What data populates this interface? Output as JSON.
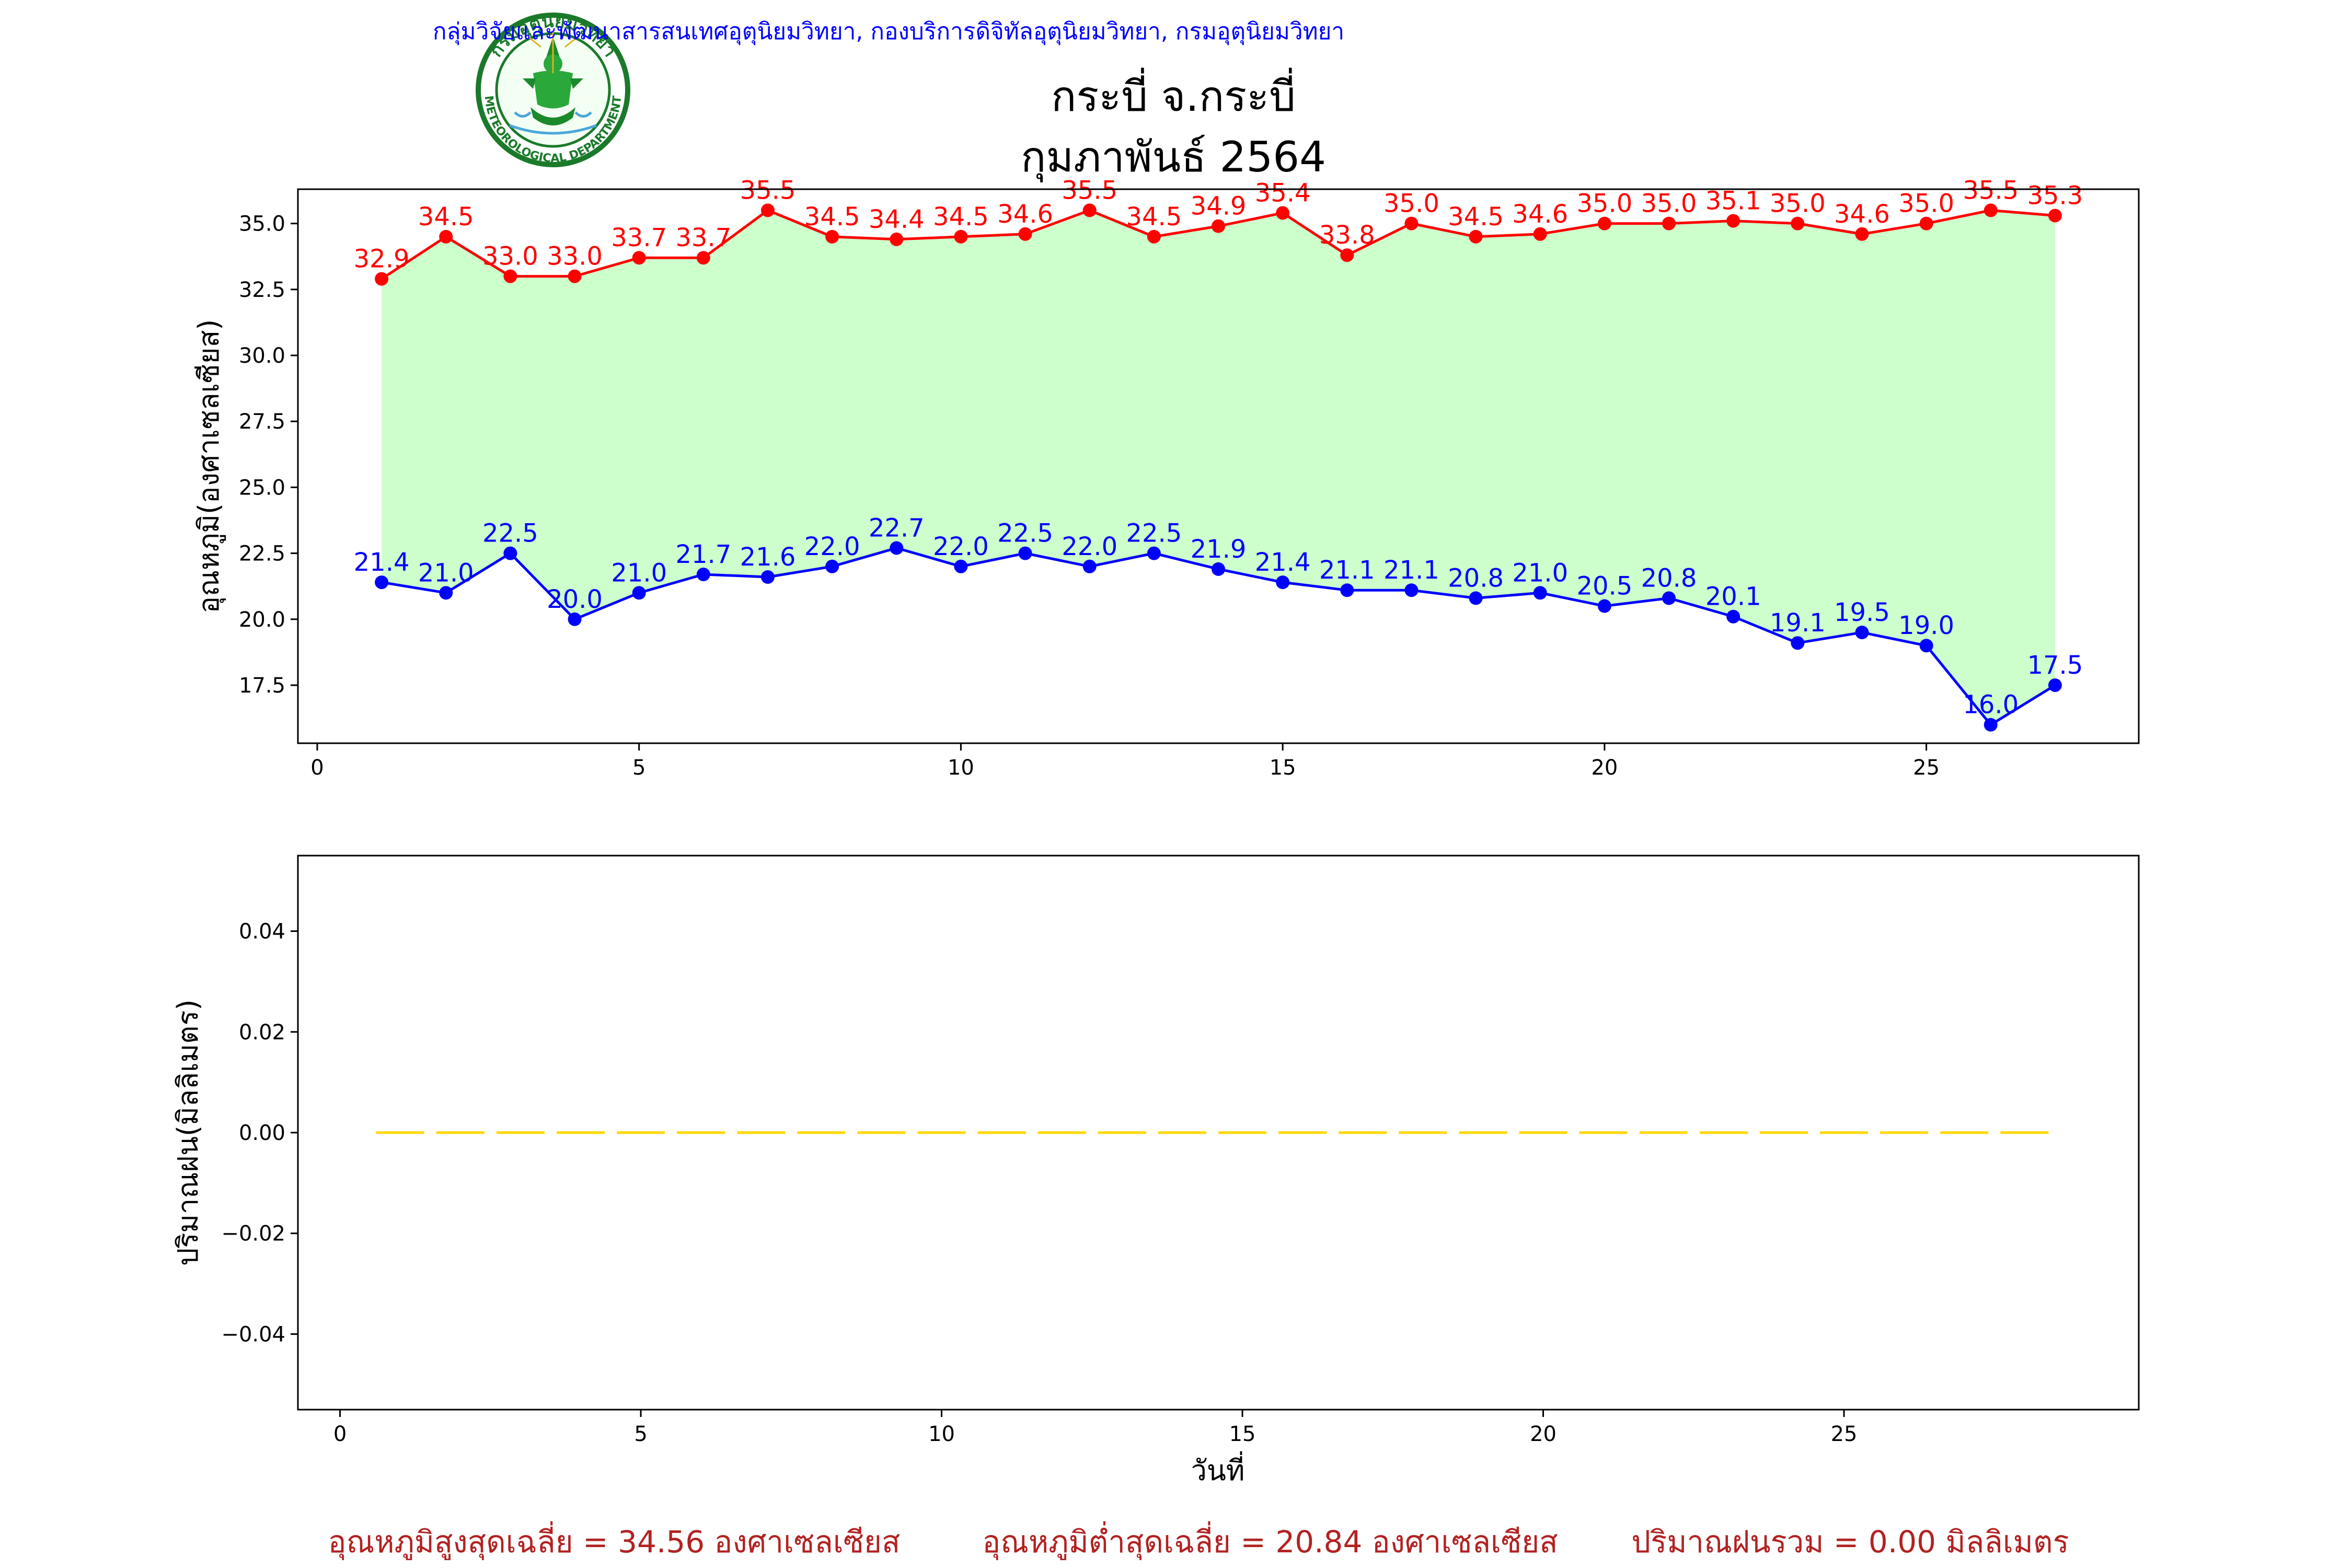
{
  "header": {
    "org_line": "กลุ่มวิจัยและพัฒนาสารสนเทศอุตุนิยมวิทยา, กองบริการดิจิทัลอุตุนิยมวิทยา, กรมอุตุนิยมวิทยา",
    "title_line1": "กระบี่ จ.กระบี่",
    "title_line2": "กุมภาพันธ์ 2564",
    "logo_text_top": "กรมอุตุนิยมวิทยา",
    "logo_text_bottom": "METEOROLOGICAL DEPARTMENT"
  },
  "footer": {
    "avg_max": "อุณหภูมิสูงสุดเฉลี่ย = 34.56 องศาเซลเซียส",
    "avg_min": "อุณหภูมิต่ำสุดเฉลี่ย = 20.84 องศาเซลเซียส",
    "total_rain": "ปริมาณฝนรวม = 0.00 มิลลิเมตร"
  },
  "colors": {
    "max_line": "#ff0000",
    "min_line": "#0000ff",
    "fill": "#ccffcc",
    "rain_line": "#ffd700",
    "org_text": "#0000ff",
    "footer_text": "#b22222"
  },
  "chart_data": [
    {
      "type": "line",
      "ylabel": "อุณหภูมิ(องศาเซลเซียส)",
      "xlim": [
        -0.3,
        28.3
      ],
      "ylim": [
        15.3,
        36.3
      ],
      "xticks": [
        0,
        5,
        10,
        15,
        20,
        25
      ],
      "yticks": [
        17.5,
        20.0,
        22.5,
        25.0,
        27.5,
        30.0,
        32.5,
        35.0
      ],
      "fill_between": true,
      "x": [
        1,
        2,
        3,
        4,
        5,
        6,
        7,
        8,
        9,
        10,
        11,
        12,
        13,
        14,
        15,
        16,
        17,
        18,
        19,
        20,
        21,
        22,
        23,
        24,
        25,
        26,
        27
      ],
      "series": [
        {
          "key": "max",
          "values": [
            32.9,
            34.5,
            33.0,
            33.0,
            33.7,
            33.7,
            35.5,
            34.5,
            34.4,
            34.5,
            34.6,
            35.5,
            34.5,
            34.9,
            35.4,
            33.8,
            35.0,
            34.5,
            34.6,
            35.0,
            35.0,
            35.1,
            35.0,
            34.6,
            35.0,
            35.5,
            35.3
          ]
        },
        {
          "key": "min",
          "values": [
            21.4,
            21.0,
            22.5,
            20.0,
            21.0,
            21.7,
            21.6,
            22.0,
            22.7,
            22.0,
            22.5,
            22.0,
            22.5,
            21.9,
            21.4,
            21.1,
            21.1,
            20.8,
            21.0,
            20.5,
            20.8,
            20.1,
            19.1,
            19.5,
            19.0,
            16.0,
            17.5
          ]
        }
      ]
    },
    {
      "type": "line",
      "xlabel": "วันที่",
      "ylabel": "ปริมาณฝน(มิลลิเมตร)",
      "xlim": [
        -0.7,
        29.9
      ],
      "ylim": [
        -0.055,
        0.055
      ],
      "xticks": [
        0,
        5,
        10,
        15,
        20,
        25
      ],
      "yticks": [
        -0.04,
        -0.02,
        0.0,
        0.02,
        0.04
      ],
      "ytick_labels": [
        "−0.04",
        "−0.02",
        "0.00",
        "0.02",
        "0.04"
      ],
      "x": [
        1,
        2,
        3,
        4,
        5,
        6,
        7,
        8,
        9,
        10,
        11,
        12,
        13,
        14,
        15,
        16,
        17,
        18,
        19,
        20,
        21,
        22,
        23,
        24,
        25,
        26,
        27,
        28
      ],
      "series": [
        {
          "key": "rain",
          "values": [
            0,
            0,
            0,
            0,
            0,
            0,
            0,
            0,
            0,
            0,
            0,
            0,
            0,
            0,
            0,
            0,
            0,
            0,
            0,
            0,
            0,
            0,
            0,
            0,
            0,
            0,
            0,
            0
          ],
          "bar_width": 0.8
        }
      ]
    }
  ]
}
